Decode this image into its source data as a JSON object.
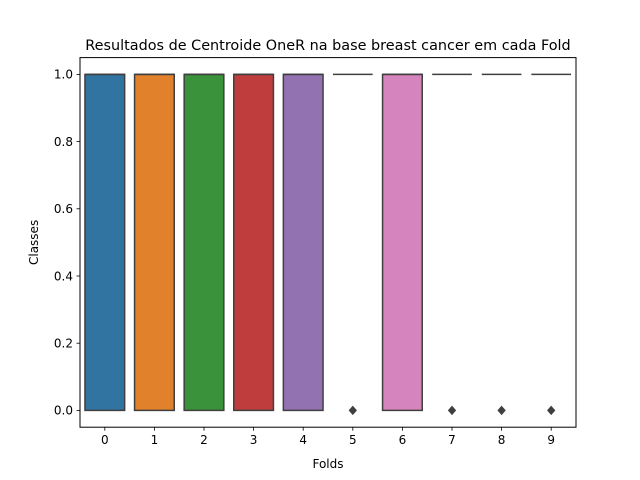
{
  "chart_data": {
    "type": "box",
    "title": "Resultados de Centroide OneR na base breast cancer em cada Fold",
    "xlabel": "Folds",
    "ylabel": "Classes",
    "categories": [
      "0",
      "1",
      "2",
      "3",
      "4",
      "5",
      "6",
      "7",
      "8",
      "9"
    ],
    "ylim": [
      -0.05,
      1.05
    ],
    "yticks": [
      0.0,
      0.2,
      0.4,
      0.6,
      0.8,
      1.0
    ],
    "ytick_labels": [
      "0.0",
      "0.2",
      "0.4",
      "0.6",
      "0.8",
      "1.0"
    ],
    "grid": false,
    "legend": "none",
    "boxes": [
      {
        "category": "0",
        "q1": 0,
        "median": 1,
        "q3": 1,
        "whisker_low": 0,
        "whisker_high": 1,
        "outliers": [],
        "color": "#3274a1"
      },
      {
        "category": "1",
        "q1": 0,
        "median": 1,
        "q3": 1,
        "whisker_low": 0,
        "whisker_high": 1,
        "outliers": [],
        "color": "#e1812c"
      },
      {
        "category": "2",
        "q1": 0,
        "median": 1,
        "q3": 1,
        "whisker_low": 0,
        "whisker_high": 1,
        "outliers": [],
        "color": "#3a923a"
      },
      {
        "category": "3",
        "q1": 0,
        "median": 1,
        "q3": 1,
        "whisker_low": 0,
        "whisker_high": 1,
        "outliers": [],
        "color": "#c03d3e"
      },
      {
        "category": "4",
        "q1": 0,
        "median": 1,
        "q3": 1,
        "whisker_low": 0,
        "whisker_high": 1,
        "outliers": [],
        "color": "#9372b2"
      },
      {
        "category": "5",
        "q1": 1,
        "median": 1,
        "q3": 1,
        "whisker_low": 1,
        "whisker_high": 1,
        "outliers": [
          0
        ],
        "color": "#845b53"
      },
      {
        "category": "6",
        "q1": 0,
        "median": 1,
        "q3": 1,
        "whisker_low": 0,
        "whisker_high": 1,
        "outliers": [],
        "color": "#d684bd"
      },
      {
        "category": "7",
        "q1": 1,
        "median": 1,
        "q3": 1,
        "whisker_low": 1,
        "whisker_high": 1,
        "outliers": [
          0
        ],
        "color": "#7f7f7f"
      },
      {
        "category": "8",
        "q1": 1,
        "median": 1,
        "q3": 1,
        "whisker_low": 1,
        "whisker_high": 1,
        "outliers": [
          0
        ],
        "color": "#a9aa35"
      },
      {
        "category": "9",
        "q1": 1,
        "median": 1,
        "q3": 1,
        "whisker_low": 1,
        "whisker_high": 1,
        "outliers": [
          0
        ],
        "color": "#2e9ac0"
      }
    ],
    "line_color": "#3f3f3f"
  }
}
